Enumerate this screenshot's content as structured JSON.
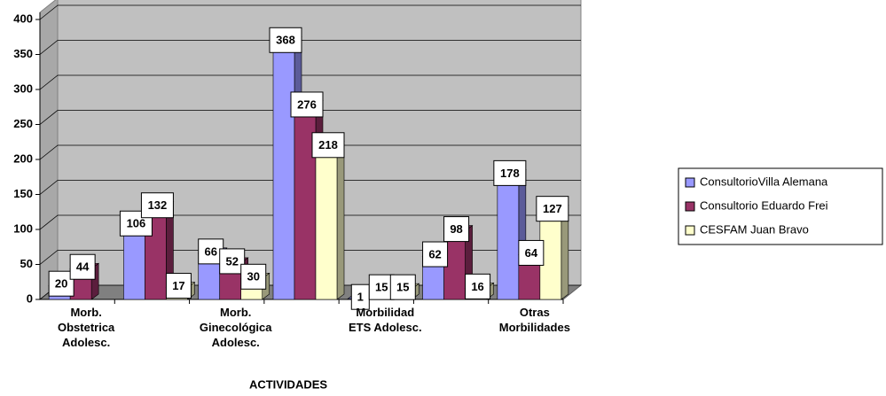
{
  "chart_data": {
    "type": "bar",
    "x_label": "ACTIVIDADES",
    "categories": [
      "Morb.\nObstetrica\nAdolesc.",
      null,
      "Morb.\nGinecológica\nAdolesc.",
      null,
      "Morbilidad\nETS Adolesc.",
      null,
      "Otras\nMorbilidades"
    ],
    "series": [
      {
        "name": "ConsultorioVilla Alemana",
        "color": "#9999ff",
        "values": [
          20,
          106,
          66,
          368,
          1,
          62,
          178
        ]
      },
      {
        "name": "Consultorio Eduardo Frei",
        "color": "#993366",
        "values": [
          44,
          132,
          52,
          276,
          15,
          98,
          64
        ]
      },
      {
        "name": "CESFAM Juan Bravo",
        "color": "#ffffcc",
        "values": [
          null,
          17,
          30,
          218,
          15,
          16,
          127
        ]
      }
    ],
    "ylim": [
      0,
      400
    ],
    "yticks": [
      0,
      50,
      100,
      150,
      200,
      250,
      300,
      350,
      400
    ],
    "grid": true,
    "legend": "right"
  }
}
